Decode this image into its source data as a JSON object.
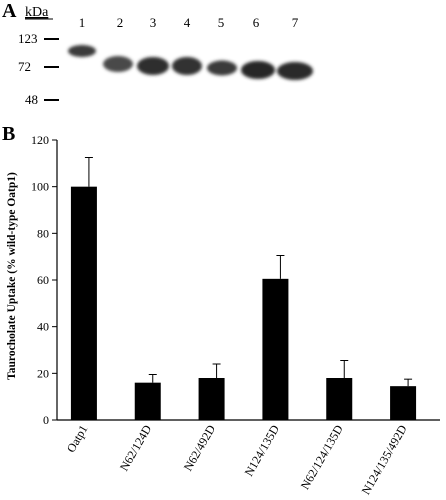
{
  "panel_a": {
    "letter": "A",
    "unit_label": "kDa",
    "markers": [
      "123",
      "72",
      "48"
    ],
    "lane_numbers": [
      "1",
      "2",
      "3",
      "4",
      "5",
      "6",
      "7"
    ]
  },
  "panel_b": {
    "letter": "B"
  },
  "chart_data": {
    "type": "bar",
    "title": "",
    "xlabel": "",
    "ylabel": "Taurocholate Uptake (% wild-type Oatp1)",
    "categories": [
      "Oatp1",
      "N62/124D",
      "N62/492D",
      "N124/135D",
      "N62/124/135D",
      "N124/135/492D"
    ],
    "values": [
      100,
      16,
      18,
      60.5,
      18,
      14.5
    ],
    "errors": [
      12.5,
      3.5,
      6,
      10,
      7.5,
      3
    ],
    "ylim": [
      0,
      120
    ],
    "yticks": [
      "0",
      "20",
      "40",
      "60",
      "80",
      "100",
      "120"
    ],
    "grid": false,
    "colors": {
      "bar": "#000000",
      "background": "#ffffff"
    }
  }
}
